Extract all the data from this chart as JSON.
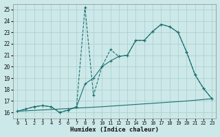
{
  "xlabel": "Humidex (Indice chaleur)",
  "bg_color": "#cce8e8",
  "grid_color": "#aacccc",
  "line_color": "#1a6e6e",
  "xlim": [
    -0.5,
    23.5
  ],
  "ylim": [
    15.5,
    25.5
  ],
  "xticks": [
    0,
    1,
    2,
    3,
    4,
    5,
    6,
    7,
    8,
    9,
    10,
    11,
    12,
    13,
    14,
    15,
    16,
    17,
    18,
    19,
    20,
    21,
    22,
    23
  ],
  "yticks": [
    16,
    17,
    18,
    19,
    20,
    21,
    22,
    23,
    24,
    25
  ],
  "series1_x": [
    0,
    1,
    2,
    3,
    4,
    5,
    6,
    7,
    8,
    9,
    10,
    11,
    12,
    13,
    14,
    15,
    16,
    17,
    18,
    19,
    20,
    21,
    22,
    23
  ],
  "series1_y": [
    16.1,
    16.3,
    16.5,
    16.6,
    16.5,
    16.0,
    16.2,
    16.5,
    25.2,
    17.5,
    20.0,
    21.5,
    20.9,
    21.0,
    22.3,
    22.3,
    23.1,
    23.7,
    23.5,
    23.0,
    21.3,
    19.3,
    18.1,
    17.2
  ],
  "series2_x": [
    0,
    1,
    2,
    3,
    4,
    5,
    6,
    7,
    8,
    9,
    10,
    11,
    12,
    13,
    14,
    15,
    16,
    17,
    18,
    19,
    20,
    21,
    22,
    23
  ],
  "series2_y": [
    16.1,
    16.3,
    16.5,
    16.6,
    16.5,
    16.0,
    16.2,
    16.5,
    18.5,
    19.0,
    20.0,
    20.5,
    20.9,
    21.0,
    22.3,
    22.3,
    23.1,
    23.7,
    23.5,
    23.0,
    21.3,
    19.3,
    18.1,
    17.2
  ],
  "series3_x": [
    0,
    10,
    20,
    23
  ],
  "series3_y": [
    16.1,
    16.5,
    17.0,
    17.2
  ]
}
